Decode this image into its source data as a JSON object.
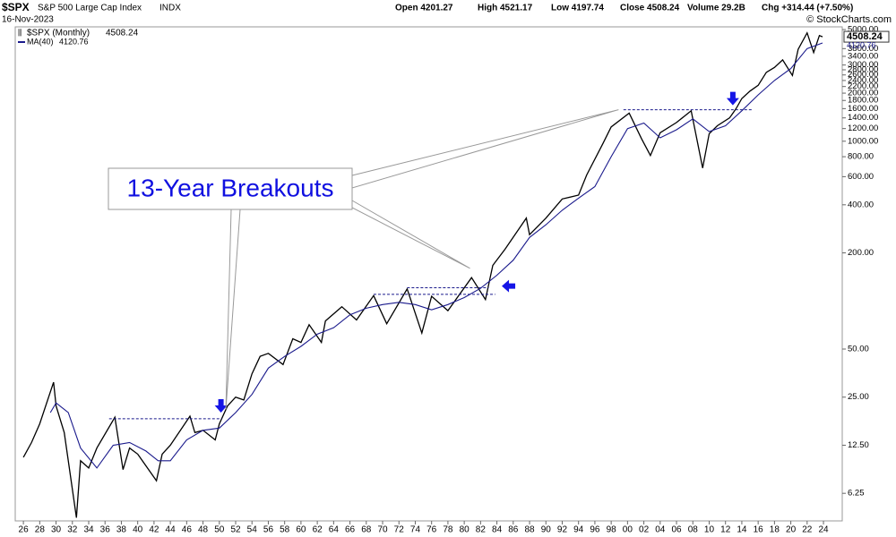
{
  "header": {
    "symbol": "$SPX",
    "name": "S&P 500 Large Cap Index",
    "exchange": "INDX",
    "date": "16-Nov-2023",
    "open": "Open 4201.27",
    "high": "High 4521.17",
    "low": "Low 4197.74",
    "close": "Close 4508.24",
    "volume": "Volume 29.2B",
    "change": "Chg +314.44 (+7.50%)",
    "source": "© StockCharts.com"
  },
  "chart_data": {
    "type": "line",
    "log_scale": true,
    "grid": false,
    "xlim": [
      1925,
      2026.3
    ],
    "ylim": [
      4.2,
      5200
    ],
    "xticks": [
      {
        "value": 1926,
        "label": "26"
      },
      {
        "value": 1928,
        "label": "28"
      },
      {
        "value": 1930,
        "label": "30"
      },
      {
        "value": 1932,
        "label": "32"
      },
      {
        "value": 1934,
        "label": "34"
      },
      {
        "value": 1936,
        "label": "36"
      },
      {
        "value": 1938,
        "label": "38"
      },
      {
        "value": 1940,
        "label": "40"
      },
      {
        "value": 1942,
        "label": "42"
      },
      {
        "value": 1944,
        "label": "44"
      },
      {
        "value": 1946,
        "label": "46"
      },
      {
        "value": 1948,
        "label": "48"
      },
      {
        "value": 1950,
        "label": "50"
      },
      {
        "value": 1952,
        "label": "52"
      },
      {
        "value": 1954,
        "label": "54"
      },
      {
        "value": 1956,
        "label": "56"
      },
      {
        "value": 1958,
        "label": "58"
      },
      {
        "value": 1960,
        "label": "60"
      },
      {
        "value": 1962,
        "label": "62"
      },
      {
        "value": 1964,
        "label": "64"
      },
      {
        "value": 1966,
        "label": "66"
      },
      {
        "value": 1968,
        "label": "68"
      },
      {
        "value": 1970,
        "label": "70"
      },
      {
        "value": 1972,
        "label": "72"
      },
      {
        "value": 1974,
        "label": "74"
      },
      {
        "value": 1976,
        "label": "76"
      },
      {
        "value": 1978,
        "label": "78"
      },
      {
        "value": 1980,
        "label": "80"
      },
      {
        "value": 1982,
        "label": "82"
      },
      {
        "value": 1984,
        "label": "84"
      },
      {
        "value": 1986,
        "label": "86"
      },
      {
        "value": 1988,
        "label": "88"
      },
      {
        "value": 1990,
        "label": "90"
      },
      {
        "value": 1992,
        "label": "92"
      },
      {
        "value": 1994,
        "label": "94"
      },
      {
        "value": 1996,
        "label": "96"
      },
      {
        "value": 1998,
        "label": "98"
      },
      {
        "value": 2000,
        "label": "00"
      },
      {
        "value": 2002,
        "label": "02"
      },
      {
        "value": 2004,
        "label": "04"
      },
      {
        "value": 2006,
        "label": "06"
      },
      {
        "value": 2008,
        "label": "08"
      },
      {
        "value": 2010,
        "label": "10"
      },
      {
        "value": 2012,
        "label": "12"
      },
      {
        "value": 2014,
        "label": "14"
      },
      {
        "value": 2016,
        "label": "16"
      },
      {
        "value": 2018,
        "label": "18"
      },
      {
        "value": 2020,
        "label": "20"
      },
      {
        "value": 2022,
        "label": "22"
      },
      {
        "value": 2024,
        "label": "24"
      }
    ],
    "yticks": [
      6.25,
      {
        "value": 12.5,
        "label": "12.50"
      },
      {
        "value": 25,
        "label": "25.00"
      },
      {
        "value": 50,
        "label": "50.00"
      },
      {
        "value": 200,
        "label": "200.00"
      },
      {
        "value": 400,
        "label": "400.00"
      },
      {
        "value": 600,
        "label": "600.00"
      },
      {
        "value": 800,
        "label": "800.00"
      },
      {
        "value": 1000,
        "label": "1000.00"
      },
      {
        "value": 1200,
        "label": "1200.00"
      },
      {
        "value": 1400,
        "label": "1400.00"
      },
      {
        "value": 1600,
        "label": "1600.00"
      },
      {
        "value": 1800,
        "label": "1800.00"
      },
      {
        "value": 2000,
        "label": "2000.00"
      },
      {
        "value": 2200,
        "label": "2200.00"
      },
      {
        "value": 2400,
        "label": "2400.00"
      },
      {
        "value": 2600,
        "label": "2600.00"
      },
      {
        "value": 2800,
        "label": "2800.00"
      },
      {
        "value": 3000,
        "label": "3000.00"
      },
      {
        "value": 3400,
        "label": "3400.00"
      },
      {
        "value": 3800,
        "label": "3800.00"
      },
      {
        "value": 5000,
        "label": "5000.00"
      }
    ],
    "series": [
      {
        "name": "$SPX (Monthly)",
        "color": "#000000",
        "x": [
          1926,
          1927,
          1928,
          1929.7,
          1930,
          1931,
          1932.5,
          1933,
          1934,
          1935,
          1937.2,
          1938.2,
          1939,
          1940,
          1942.3,
          1943,
          1944,
          1946.4,
          1947,
          1948,
          1949.5,
          1950,
          1951,
          1952,
          1953,
          1954,
          1955,
          1956,
          1957.8,
          1959,
          1960,
          1961,
          1962.5,
          1963,
          1965,
          1966.8,
          1968.9,
          1970.5,
          1973,
          1974.8,
          1976,
          1978,
          1980.9,
          1982.6,
          1983.5,
          1985,
          1987.6,
          1988,
          1990,
          1992,
          1994,
          1995,
          1997,
          1998,
          2000.2,
          2001.7,
          2002.8,
          2004,
          2006,
          2007.8,
          2009.2,
          2010,
          2011,
          2012.5,
          2013.3,
          2014,
          2015,
          2016,
          2017,
          2018,
          2019,
          2020.2,
          2020.9,
          2022,
          2022.8,
          2023.5,
          2023.88
        ],
        "values": [
          10.5,
          13,
          17,
          31,
          22,
          15,
          4.4,
          10,
          9,
          12,
          18.7,
          8.8,
          12,
          11,
          7.5,
          11,
          12.5,
          19,
          15,
          15.5,
          13.5,
          17,
          22,
          25,
          24,
          35,
          45,
          47,
          40,
          58,
          55,
          71,
          55,
          75,
          92,
          76,
          108,
          72,
          119,
          63,
          107,
          87,
          140,
          102,
          167,
          211,
          330,
          260,
          330,
          435,
          460,
          615,
          970,
          1229,
          1500,
          1040,
          815,
          1130,
          1310,
          1550,
          680,
          1115,
          1250,
          1400,
          1600,
          1850,
          2060,
          2240,
          2700,
          2900,
          3230,
          2580,
          3760,
          4770,
          3590,
          4590,
          4508.24
        ]
      },
      {
        "name": "MA(40)",
        "color": "#1a1a8c",
        "x": [
          1929.3,
          1930,
          1931.5,
          1933,
          1935,
          1937,
          1939,
          1941,
          1942.5,
          1944,
          1946,
          1948,
          1950,
          1952,
          1954,
          1956,
          1958,
          1960,
          1962,
          1964,
          1966,
          1968,
          1970,
          1972,
          1974,
          1976,
          1978,
          1980,
          1982,
          1984,
          1986,
          1988,
          1990,
          1992,
          1994,
          1996,
          1998,
          2000,
          2002,
          2004,
          2006,
          2008,
          2010,
          2012,
          2014,
          2016,
          2018,
          2020,
          2022,
          2023.88
        ],
        "values": [
          20,
          23,
          20,
          12,
          9,
          12.5,
          13,
          11.5,
          10,
          10,
          13.5,
          15.5,
          16,
          20,
          26,
          38,
          45,
          52,
          62,
          68,
          82,
          90,
          95,
          98,
          95,
          88,
          95,
          105,
          120,
          145,
          180,
          250,
          300,
          370,
          440,
          520,
          800,
          1200,
          1300,
          1050,
          1180,
          1380,
          1150,
          1250,
          1550,
          1950,
          2400,
          2850,
          3800,
          4120.76
        ]
      }
    ],
    "resistance": [
      {
        "x": [
          1936.5,
          1950.3
        ],
        "y": 18.3
      },
      {
        "x": [
          1968.9,
          1983.8
        ],
        "y": 110
      },
      {
        "x": [
          1973,
          1983
        ],
        "y": 121
      },
      {
        "x": [
          1999.5,
          2015.2
        ],
        "y": 1575
      }
    ],
    "arrows": [
      {
        "x": 1950.2,
        "y": 20,
        "direction": "down"
      },
      {
        "x": 1984.6,
        "y": 124,
        "direction": "left"
      },
      {
        "x": 2012.9,
        "y": 1680,
        "direction": "down"
      }
    ],
    "callout": {
      "text": "13-Year Breakouts",
      "targets": [
        {
          "x": 1950.8,
          "y": 21
        },
        {
          "x": 1980.7,
          "y": 160
        },
        {
          "x": 1998.9,
          "y": 1575
        }
      ]
    }
  }
}
